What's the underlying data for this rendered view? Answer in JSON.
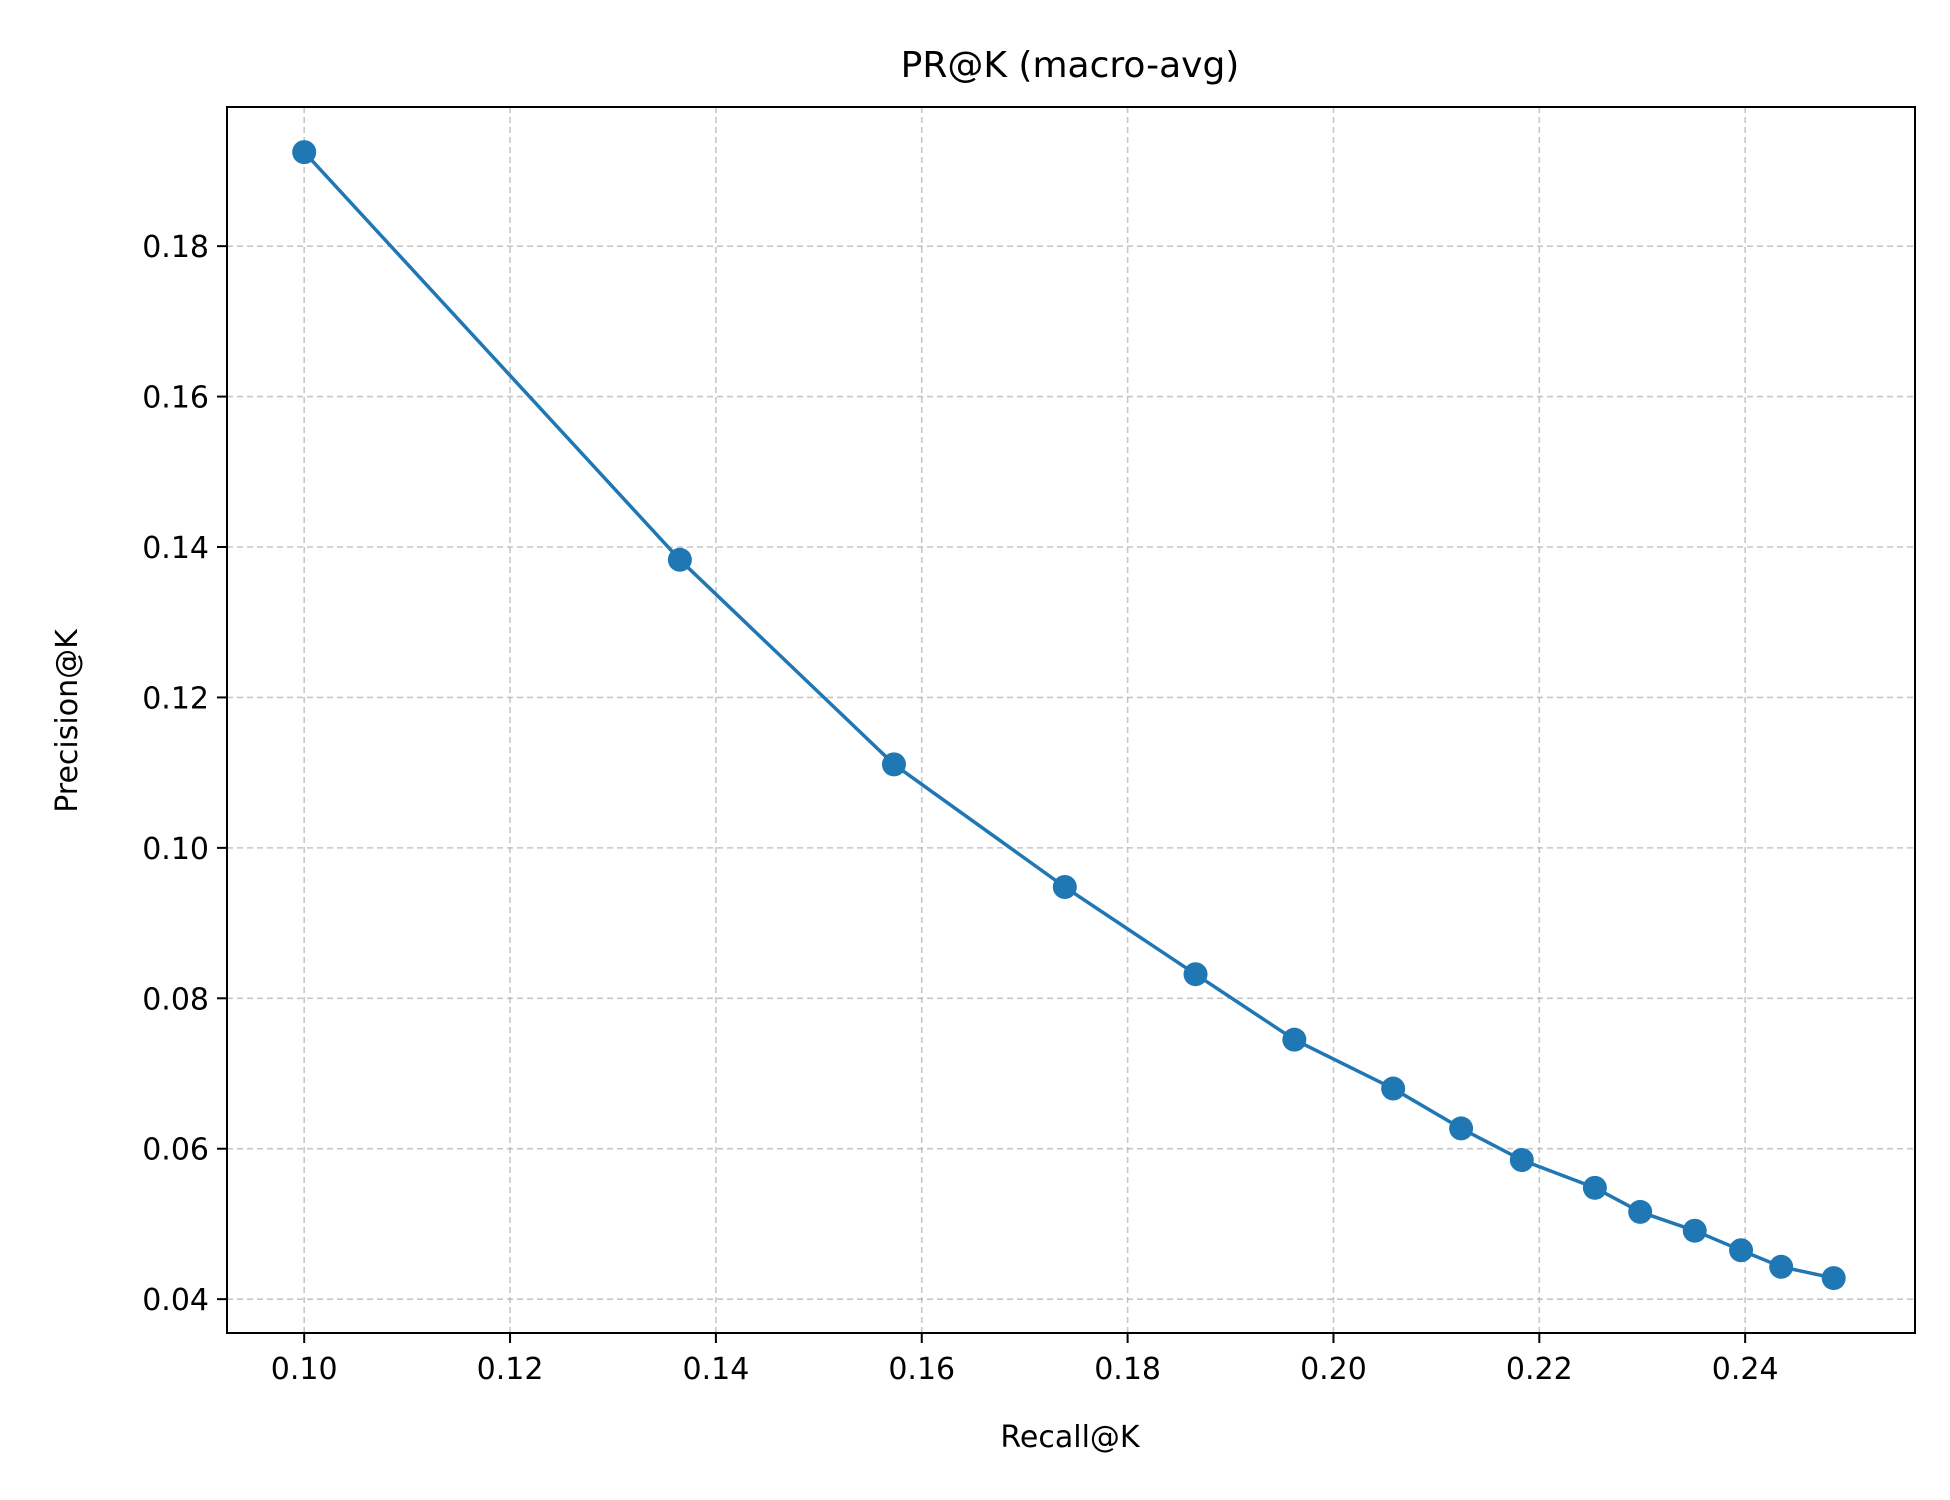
{
  "chart_data": {
    "type": "line",
    "title": "PR@K (macro-avg)",
    "xlabel": "Recall@K",
    "ylabel": "Precision@K",
    "xlim": [
      0.0925,
      0.2565
    ],
    "ylim": [
      0.0355,
      0.1985
    ],
    "xticks": [
      "0.10",
      "0.12",
      "0.14",
      "0.16",
      "0.18",
      "0.20",
      "0.22",
      "0.24"
    ],
    "yticks": [
      "0.04",
      "0.06",
      "0.08",
      "0.10",
      "0.12",
      "0.14",
      "0.16",
      "0.18"
    ],
    "grid": true,
    "grid_style": "dashed",
    "color": "#1f77b4",
    "series": [
      {
        "x": [
          0.1,
          0.1365,
          0.1573,
          0.1739,
          0.1866,
          0.1962,
          0.2058,
          0.2124,
          0.2183,
          0.2254,
          0.2298,
          0.2351,
          0.2396,
          0.2435,
          0.2486
        ],
        "y": [
          0.1925,
          0.1383,
          0.1111,
          0.0948,
          0.0832,
          0.0745,
          0.068,
          0.0627,
          0.0585,
          0.0548,
          0.0516,
          0.0491,
          0.0465,
          0.0443,
          0.0428
        ]
      }
    ]
  }
}
